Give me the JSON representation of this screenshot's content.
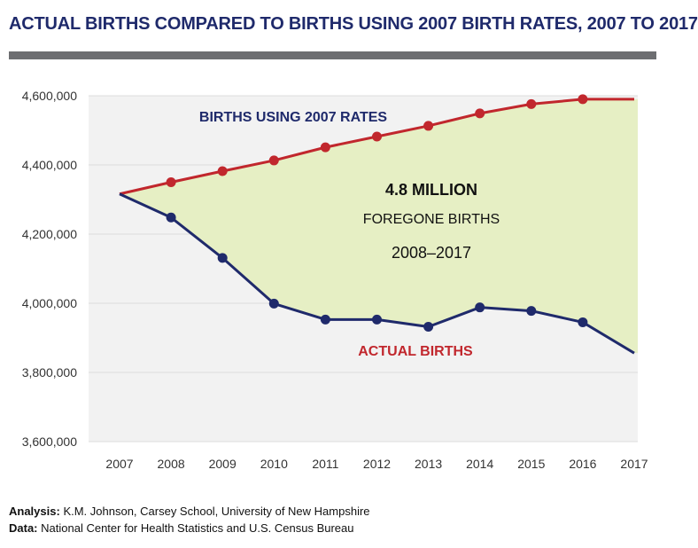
{
  "title": "ACTUAL BIRTHS COMPARED TO BIRTHS USING 2007 BIRTH RATES, 2007 TO 2017",
  "annotation": {
    "big": "4.8 MILLION",
    "line2": "FOREGONE BIRTHS",
    "line3": "2008–2017"
  },
  "footer": {
    "analysis_label": "Analysis:",
    "analysis_text": "K.M. Johnson, Carsey School, University of New Hampshire",
    "data_label": "Data:",
    "data_text": "National Center for Health Statistics and U.S. Census Bureau"
  },
  "colors": {
    "title": "#1f2a6b",
    "rates_line": "#c1272d",
    "actual_line": "#1f2a6b",
    "fill_area": "#e6efc4",
    "plot_bg": "#f2f2f2",
    "grid": "#dcdcdc"
  },
  "chart_data": {
    "type": "line",
    "title": "ACTUAL BIRTHS COMPARED TO BIRTHS USING 2007 BIRTH RATES, 2007 TO 2017",
    "x": [
      "2007",
      "2008",
      "2009",
      "2010",
      "2011",
      "2012",
      "2013",
      "2014",
      "2015",
      "2016",
      "2017"
    ],
    "ylim": [
      3600000,
      4600000
    ],
    "y_ticks": [
      3600000,
      3800000,
      4000000,
      4200000,
      4400000,
      4600000
    ],
    "y_tick_labels": [
      "3,600,000",
      "3,800,000",
      "4,000,000",
      "4,200,000",
      "4,400,000",
      "4,600,000"
    ],
    "grid": true,
    "legend": "none",
    "series": [
      {
        "name": "BIRTHS USING 2007 RATES",
        "values": [
          4316000,
          4350000,
          4382000,
          4413000,
          4451000,
          4482000,
          4513000,
          4549000,
          4576000,
          4590000,
          4590000
        ],
        "markers": [
          false,
          true,
          true,
          true,
          true,
          true,
          true,
          true,
          true,
          true,
          false
        ]
      },
      {
        "name": "ACTUAL BIRTHS",
        "values": [
          4316000,
          4248000,
          4131000,
          3999000,
          3953000,
          3953000,
          3932000,
          3988000,
          3978000,
          3945000,
          3856000
        ],
        "markers": [
          false,
          true,
          true,
          true,
          true,
          true,
          true,
          true,
          true,
          true,
          false
        ]
      }
    ]
  }
}
